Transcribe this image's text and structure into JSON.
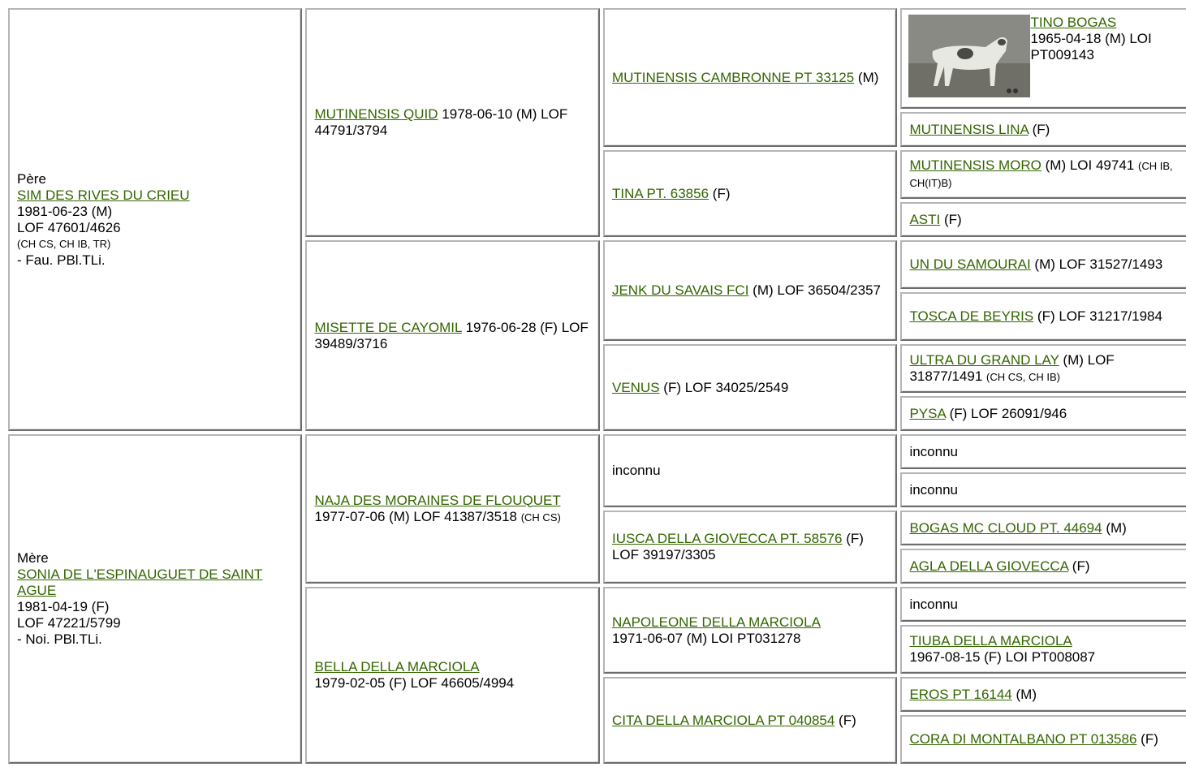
{
  "pedigree": {
    "gen1": [
      {
        "label": "Père",
        "name": "SIM DES RIVES DU CRIEU",
        "lines": [
          "1981-06-23 (M)",
          "LOF 47601/4626"
        ],
        "titles": "(CH CS, CH IB, TR)",
        "note": "- Fau. PBl.TLi."
      },
      {
        "label": "Mère",
        "name": "SONIA DE L'ESPINAUGUET DE SAINT AGUE",
        "lines": [
          "1981-04-19 (F)",
          "LOF 47221/5799"
        ],
        "note": "- Noi. PBl.TLi."
      }
    ],
    "gen2": [
      {
        "name": "MUTINENSIS QUID",
        "info": "1978-06-10 (M) LOF 44791/3794"
      },
      {
        "name": "MISETTE DE CAYOMIL",
        "info": "1976-06-28 (F) LOF 39489/3716"
      },
      {
        "name": "NAJA DES MORAINES DE FLOUQUET",
        "info": "1977-07-06 (M) LOF 41387/3518",
        "titles": "(CH CS)"
      },
      {
        "name": "BELLA DELLA MARCIOLA",
        "next_line": "1979-02-05 (F) LOF 46605/4994"
      }
    ],
    "gen3": [
      {
        "name": "MUTINENSIS CAMBRONNE PT 33125",
        "info": "(M)"
      },
      {
        "name": "TINA PT. 63856",
        "info": "(F)"
      },
      {
        "name": "JENK DU SAVAIS FCI",
        "info": "(M) LOF 36504/2357"
      },
      {
        "name": "VENUS",
        "info": "(F) LOF 34025/2549"
      },
      {
        "plain": "inconnu"
      },
      {
        "name": "IUSCA DELLA GIOVECCA PT. 58576",
        "info": "(F) LOF 39197/3305"
      },
      {
        "name": "NAPOLEONE DELLA MARCIOLA",
        "next_line": "1971-06-07 (M) LOI PT031278"
      },
      {
        "name": "CITA DELLA MARCIOLA PT 040854",
        "info": "(F)"
      }
    ],
    "gen4": [
      {
        "name": "TINO BOGAS",
        "next_line": "1965-04-18 (M) LOI PT009143"
      },
      {
        "name": "MUTINENSIS LINA",
        "info": "(F)"
      },
      {
        "name": "MUTINENSIS MORO",
        "info": "(M) LOI 49741",
        "titles": "(CH IB, CH(IT)B)"
      },
      {
        "name": "ASTI",
        "info": "(F)"
      },
      {
        "name": "UN DU SAMOURAI",
        "info": "(M) LOF 31527/1493"
      },
      {
        "name": "TOSCA DE BEYRIS",
        "info": "(F) LOF 31217/1984"
      },
      {
        "name": "ULTRA DU GRAND LAY",
        "info": "(M) LOF 31877/1491",
        "titles": "(CH CS, CH IB)"
      },
      {
        "name": "PYSA",
        "info": "(F) LOF 26091/946"
      },
      {
        "plain": "inconnu"
      },
      {
        "plain": "inconnu"
      },
      {
        "name": "BOGAS MC CLOUD PT. 44694",
        "info": "(M)"
      },
      {
        "name": "AGLA DELLA GIOVECCA",
        "info": "(F)"
      },
      {
        "plain": "inconnu"
      },
      {
        "name": "TIUBA DELLA MARCIOLA",
        "next_line": "1967-08-15 (F) LOI PT008087"
      },
      {
        "name": "EROS PT 16144",
        "info": "(M)"
      },
      {
        "name": "CORA DI MONTALBANO PT 013586",
        "info": "(F)"
      }
    ]
  }
}
